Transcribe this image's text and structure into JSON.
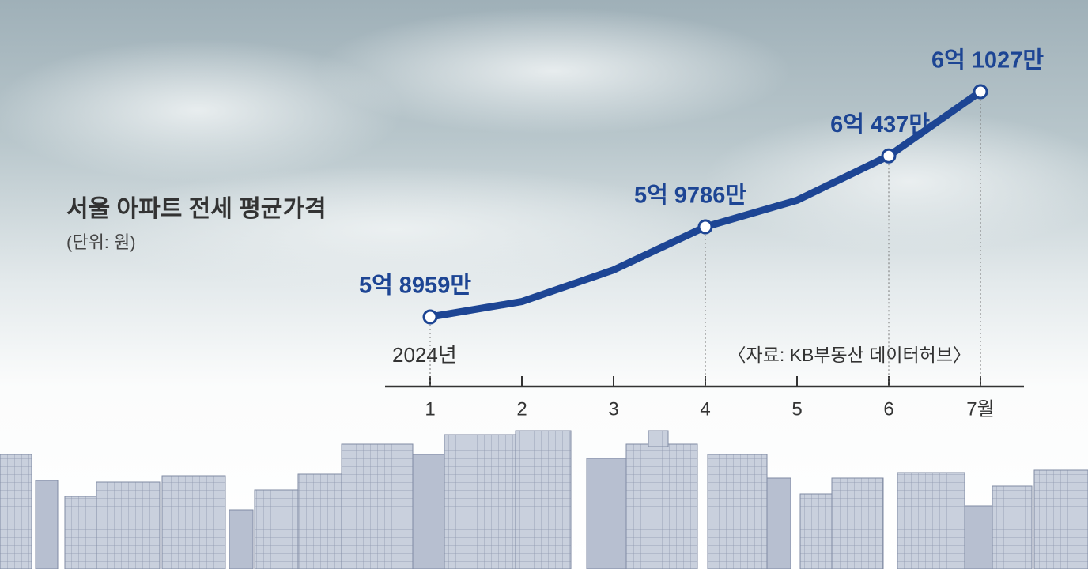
{
  "chart_data": {
    "type": "line",
    "title": "서울 아파트 전세 평균가격",
    "subtitle": "(단위: 원)",
    "source": "〈자료: KB부동산 데이터허브〉",
    "year_label": "2024년",
    "categories": [
      "1",
      "2",
      "3",
      "4",
      "5",
      "6",
      "7월"
    ],
    "series": [
      {
        "name": "서울 아파트 전세 평균가격",
        "color": "#1d4594",
        "values": [
          589590000,
          591000000,
          593900000,
          597860000,
          600300000,
          604370000,
          610270000
        ],
        "value_labels": [
          "5억 8959만",
          null,
          null,
          "5억 9786만",
          null,
          "6억 437만",
          "6억 1027만"
        ]
      }
    ]
  }
}
